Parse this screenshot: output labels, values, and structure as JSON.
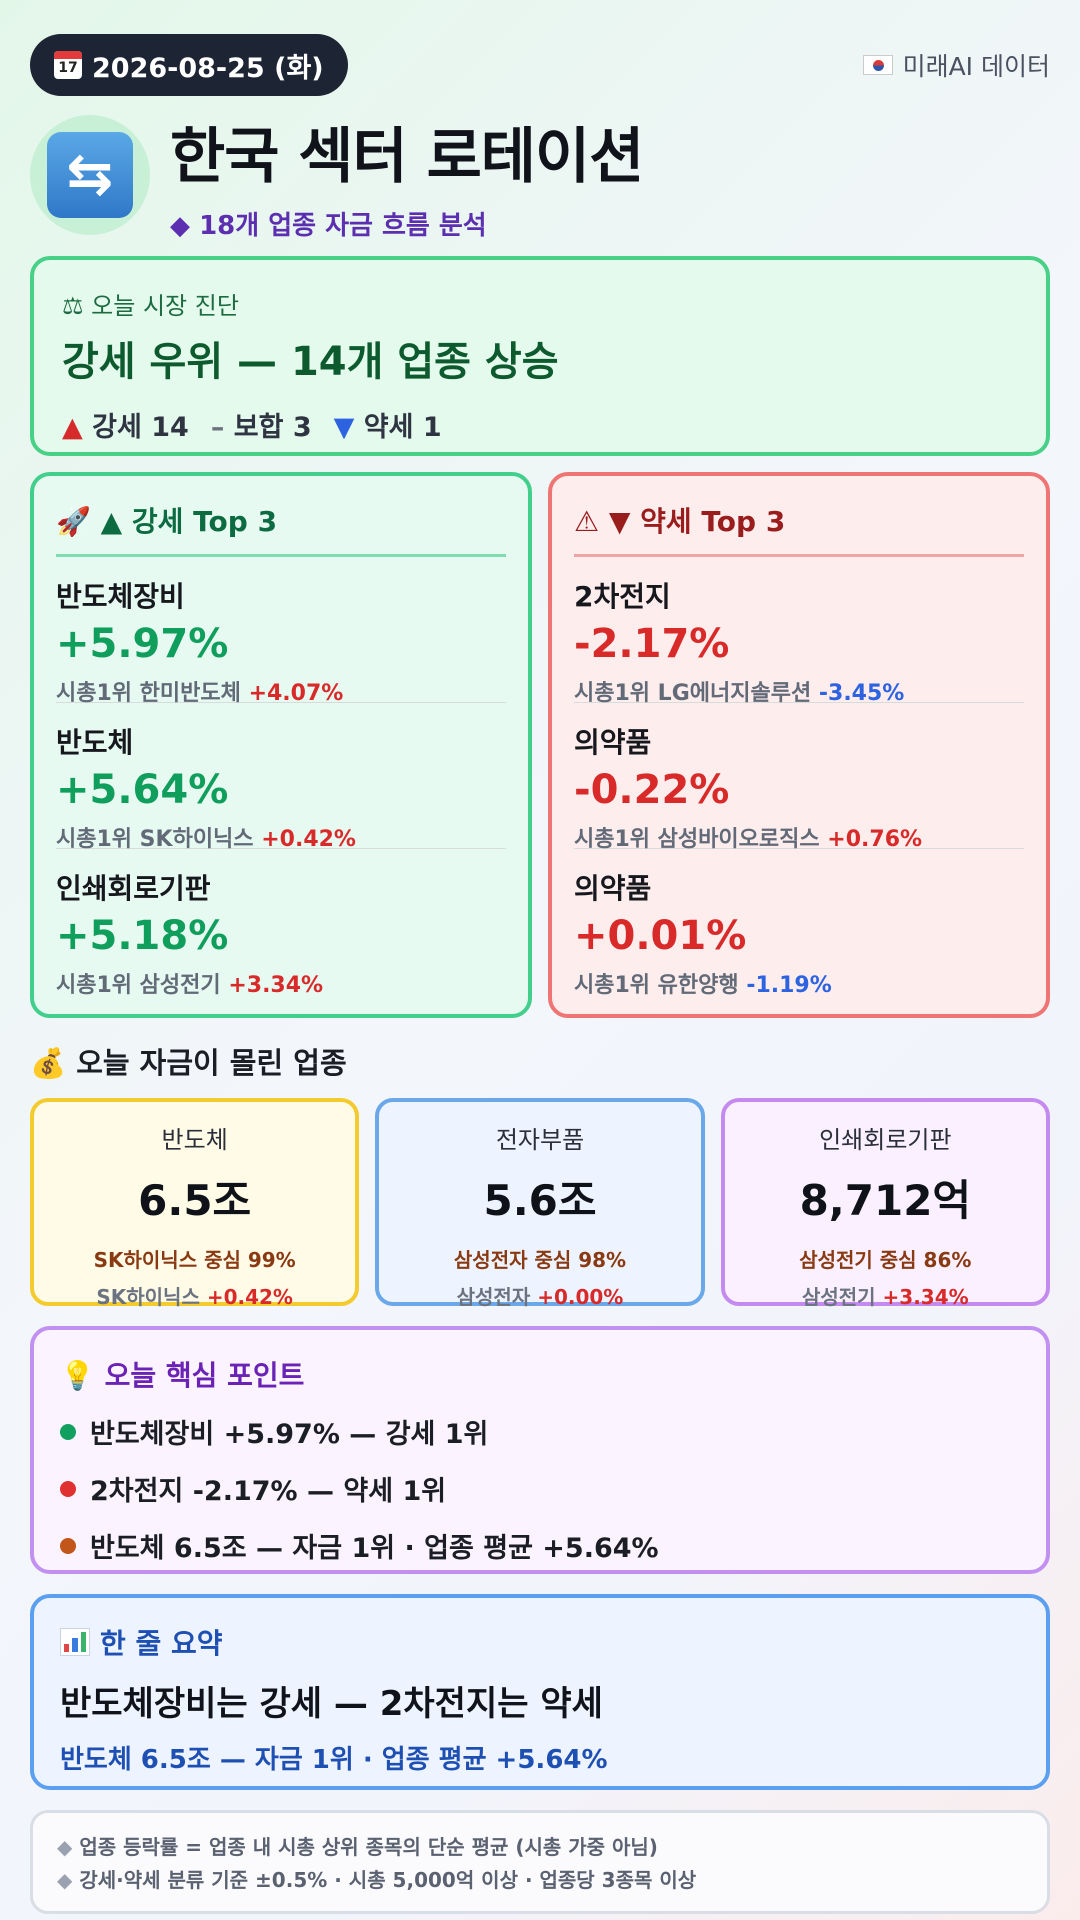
{
  "header": {
    "date": "2026-08-25 (화)",
    "calendar_icon_text": "July 17",
    "source": "미래AI 데이터",
    "title": "한국 섹터 로테이션",
    "subtitle": "18개 업종 자금 흐름 분석"
  },
  "diagnosis": {
    "label": "오늘 시장 진단",
    "headline": "강세 우위 — 14개 업종 상승",
    "strong_label": "강세 14",
    "flat_label": "보합 3",
    "weak_label": "약세 1"
  },
  "strong_top3": {
    "title": "▲ 강세 Top 3",
    "items": [
      {
        "name": "반도체장비",
        "pct": "+5.97%",
        "leader_prefix": "시총1위 한미반도체",
        "leader_pct": "+4.07%"
      },
      {
        "name": "반도체",
        "pct": "+5.64%",
        "leader_prefix": "시총1위 SK하이닉스",
        "leader_pct": "+0.42%"
      },
      {
        "name": "인쇄회로기판",
        "pct": "+5.18%",
        "leader_prefix": "시총1위 삼성전기",
        "leader_pct": "+3.34%"
      }
    ]
  },
  "weak_top3": {
    "title": "▼ 약세 Top 3",
    "items": [
      {
        "name": "2차전지",
        "pct": "-2.17%",
        "leader_prefix": "시총1위 LG에너지솔루션",
        "leader_pct": "-3.45%"
      },
      {
        "name": "의약품",
        "pct": "-0.22%",
        "leader_prefix": "시총1위 삼성바이오로직스",
        "leader_pct": "+0.76%"
      },
      {
        "name": "의약품",
        "pct": "+0.01%",
        "leader_prefix": "시총1위 유한양행",
        "leader_pct": "-1.19%"
      }
    ]
  },
  "money_flow": {
    "title": "오늘 자금이 몰린 업종",
    "cards": [
      {
        "name": "반도체",
        "value": "6.5조",
        "focus": "SK하이닉스 중심 99%",
        "stock": "SK하이닉스",
        "stock_pct": "+0.42%"
      },
      {
        "name": "전자부품",
        "value": "5.6조",
        "focus": "삼성전자 중심 98%",
        "stock": "삼성전자",
        "stock_pct": "+0.00%"
      },
      {
        "name": "인쇄회로기판",
        "value": "8,712억",
        "focus": "삼성전기 중심 86%",
        "stock": "삼성전기",
        "stock_pct": "+3.34%"
      }
    ]
  },
  "key_points": {
    "title": "오늘 핵심 포인트",
    "items": [
      {
        "text": "반도체장비 +5.97% — 강세 1위",
        "dot_color": "#12a061"
      },
      {
        "text": "2차전지 -2.17% — 약세 1위",
        "dot_color": "#e03131"
      },
      {
        "text": "반도체 6.5조 — 자금 1위 · 업종 평균 +5.64%",
        "dot_color": "#c2551a"
      }
    ]
  },
  "summary": {
    "title": "한 줄 요약",
    "main": "반도체장비는 강세 — 2차전지는 약세",
    "sub": "반도체 6.5조 — 자금 1위 · 업종 평균 +5.64%"
  },
  "notes": [
    "업종 등락률 = 업종 내 시총 상위 종목의 단순 평균 (시총 가중 아님)",
    "강세·약세 분류 기준 ±0.5% · 시총 5,000억 이상 · 업종당 3종목 이상"
  ],
  "icons": {
    "calendar": "calendar-icon",
    "flag": "korea-flag-icon",
    "rotate": "rotate-arrows-icon",
    "diamond": "diamond-icon",
    "scale": "balance-scale-icon",
    "rocket": "rocket-icon",
    "warning": "warning-icon",
    "money_bag": "money-bag-icon",
    "bulb": "lightbulb-icon",
    "bar_chart": "bar-chart-icon"
  },
  "colors": {
    "up_red": "#d92a2a",
    "down_blue": "#2d63e0",
    "strong_green": "#0f9e5c",
    "accent_purple": "#6a23b5"
  }
}
